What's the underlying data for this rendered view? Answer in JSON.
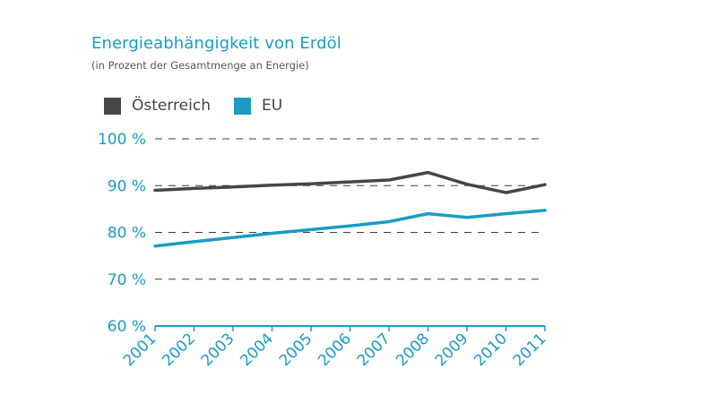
{
  "chart_data": {
    "type": "line",
    "title": "Energieabhängigkeit von Erdöl",
    "subtitle": "(in Prozent der Gesamtmenge an Energie)",
    "x": [
      "2001",
      "2002",
      "2003",
      "2004",
      "2005",
      "2006",
      "2007",
      "2008",
      "2009",
      "2010",
      "2011"
    ],
    "y_ticks": [
      60,
      70,
      80,
      90,
      100
    ],
    "y_tick_labels": [
      "60 %",
      "70 %",
      "80 %",
      "90 %",
      "100 %"
    ],
    "ylim": [
      60,
      100
    ],
    "grid": "horizontal dashed",
    "legend_position": "top-left",
    "series": [
      {
        "name": "Österreich",
        "color": "#464646",
        "values": [
          89.0,
          89.4,
          89.7,
          90.1,
          90.4,
          90.8,
          91.2,
          92.8,
          90.3,
          88.5,
          90.2
        ]
      },
      {
        "name": "EU",
        "color": "#1a9cc4",
        "values": [
          77.1,
          78.0,
          78.9,
          79.8,
          80.6,
          81.4,
          82.3,
          84.0,
          83.2,
          84.0,
          84.7
        ]
      }
    ]
  }
}
